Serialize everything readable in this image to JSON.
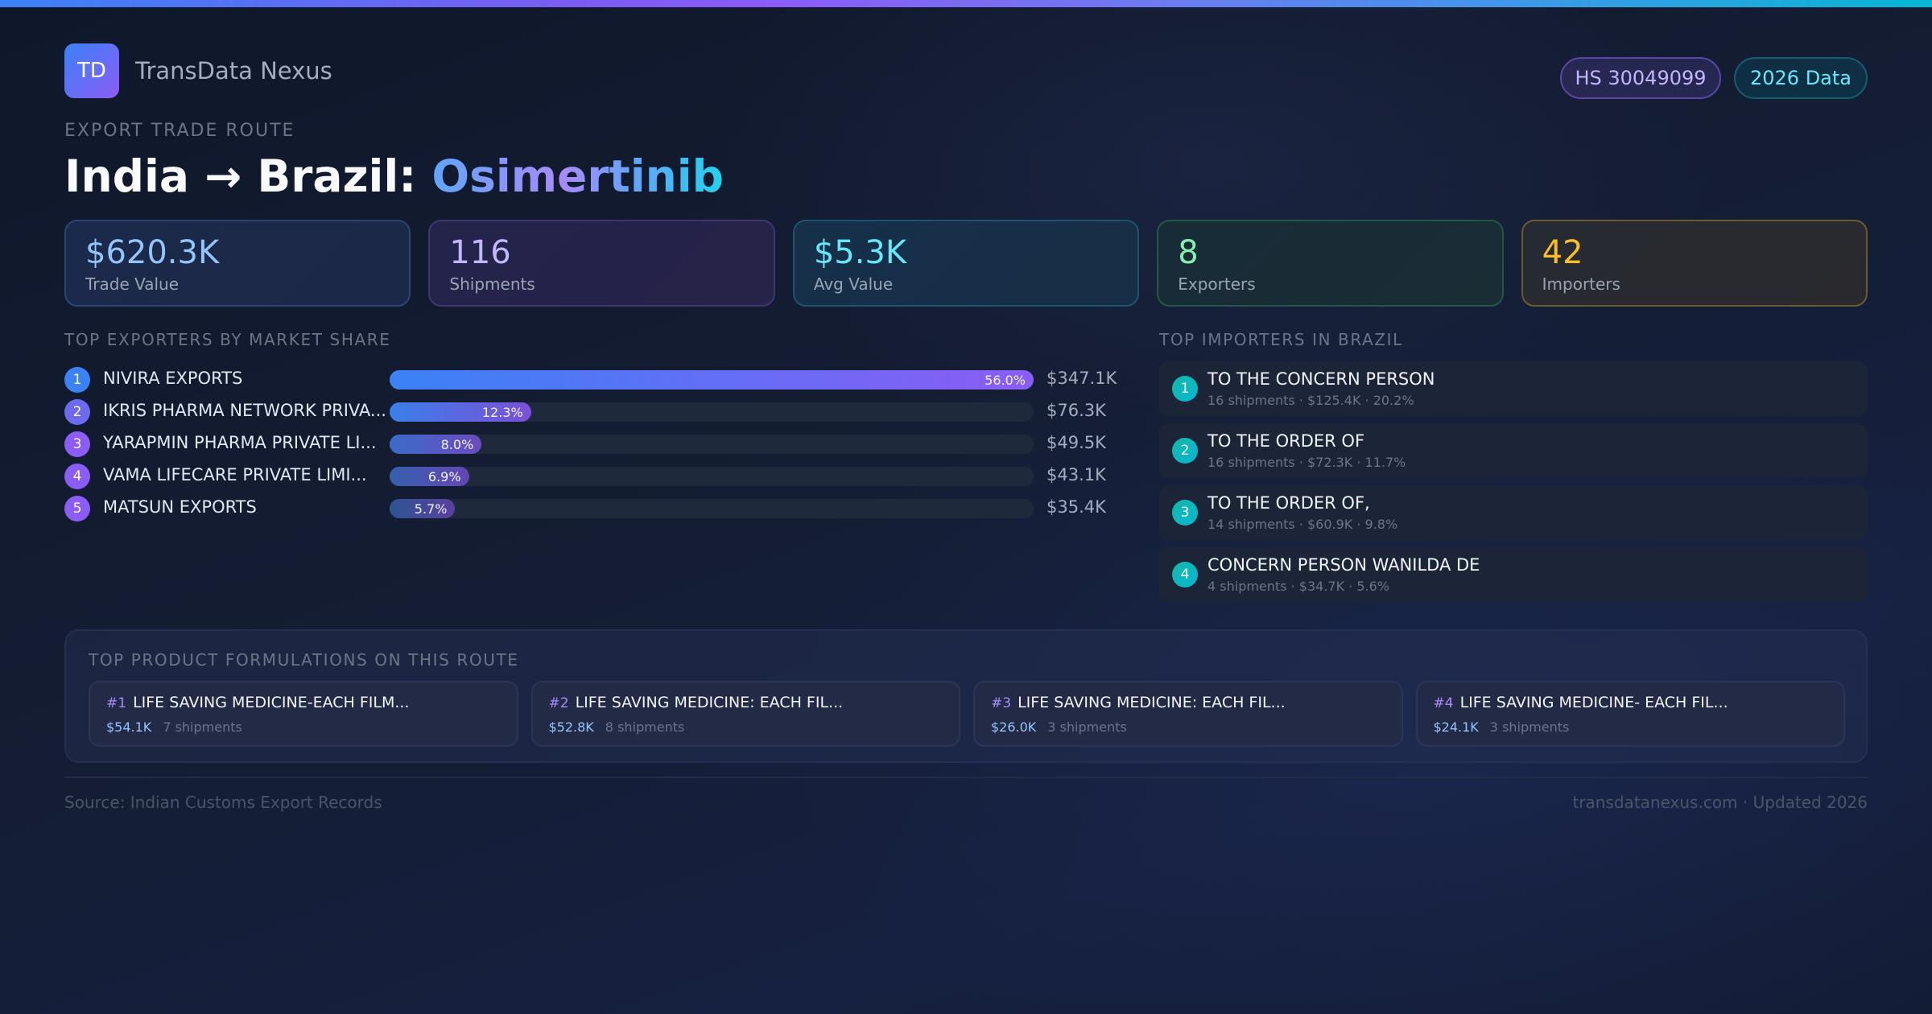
{
  "brand": {
    "logo_text": "TD",
    "name": "TransData Nexus"
  },
  "badges": {
    "hs_code": "HS 30049099",
    "data_year": "2026 Data"
  },
  "route": {
    "eyebrow": "EXPORT TRADE ROUTE",
    "title_prefix": "India → Brazil: ",
    "product": "Osimertinib"
  },
  "stats": [
    {
      "value": "$620.3K",
      "label": "Trade Value",
      "color": "#93c5fd"
    },
    {
      "value": "116",
      "label": "Shipments",
      "color": "#c4b5fd"
    },
    {
      "value": "$5.3K",
      "label": "Avg Value",
      "color": "#67e8f9"
    },
    {
      "value": "8",
      "label": "Exporters",
      "color": "#86efac"
    },
    {
      "value": "42",
      "label": "Importers",
      "color": "#fbbf24"
    }
  ],
  "exporters": {
    "title": "TOP EXPORTERS BY MARKET SHARE",
    "items": [
      {
        "rank": "1",
        "name": "NIVIRA EXPORTS",
        "share": "56.0%",
        "share_num": 56.0,
        "value": "$347.1K"
      },
      {
        "rank": "2",
        "name": "IKRIS PHARMA NETWORK PRIVA...",
        "share": "12.3%",
        "share_num": 12.3,
        "value": "$76.3K"
      },
      {
        "rank": "3",
        "name": "YARAPMIN PHARMA PRIVATE LI...",
        "share": "8.0%",
        "share_num": 8.0,
        "value": "$49.5K"
      },
      {
        "rank": "4",
        "name": "VAMA LIFECARE PRIVATE LIMI...",
        "share": "6.9%",
        "share_num": 6.9,
        "value": "$43.1K"
      },
      {
        "rank": "5",
        "name": "MATSUN EXPORTS",
        "share": "5.7%",
        "share_num": 5.7,
        "value": "$35.4K"
      }
    ]
  },
  "importers": {
    "title": "TOP IMPORTERS IN BRAZIL",
    "items": [
      {
        "rank": "1",
        "name": "TO THE CONCERN PERSON",
        "meta": "16 shipments · $125.4K · 20.2%"
      },
      {
        "rank": "2",
        "name": "TO THE ORDER OF",
        "meta": "16 shipments · $72.3K · 11.7%"
      },
      {
        "rank": "3",
        "name": "TO THE ORDER OF,",
        "meta": "14 shipments · $60.9K · 9.8%"
      },
      {
        "rank": "4",
        "name": "CONCERN PERSON WANILDA DE",
        "meta": "4 shipments · $34.7K · 5.6%"
      }
    ]
  },
  "formulations": {
    "title": "TOP PRODUCT FORMULATIONS ON THIS ROUTE",
    "items": [
      {
        "rank": "#1",
        "name": "LIFE SAVING MEDICINE-EACH FILM...",
        "value": "$54.1K",
        "shipments": "7 shipments"
      },
      {
        "rank": "#2",
        "name": "LIFE SAVING MEDICINE: EACH FIL...",
        "value": "$52.8K",
        "shipments": "8 shipments"
      },
      {
        "rank": "#3",
        "name": "LIFE SAVING MEDICINE: EACH FIL...",
        "value": "$26.0K",
        "shipments": "3 shipments"
      },
      {
        "rank": "#4",
        "name": "LIFE SAVING MEDICINE- EACH FIL...",
        "value": "$24.1K",
        "shipments": "3 shipments"
      }
    ]
  },
  "footer": {
    "source": "Source: Indian Customs Export Records",
    "site": "transdatanexus.com · Updated 2026"
  },
  "colors": {
    "accent_blue": "#3b82f6",
    "accent_purple": "#8b5cf6",
    "accent_cyan": "#06b6d4",
    "importer_badge": "#14b8a6",
    "background": "#0f172a"
  }
}
